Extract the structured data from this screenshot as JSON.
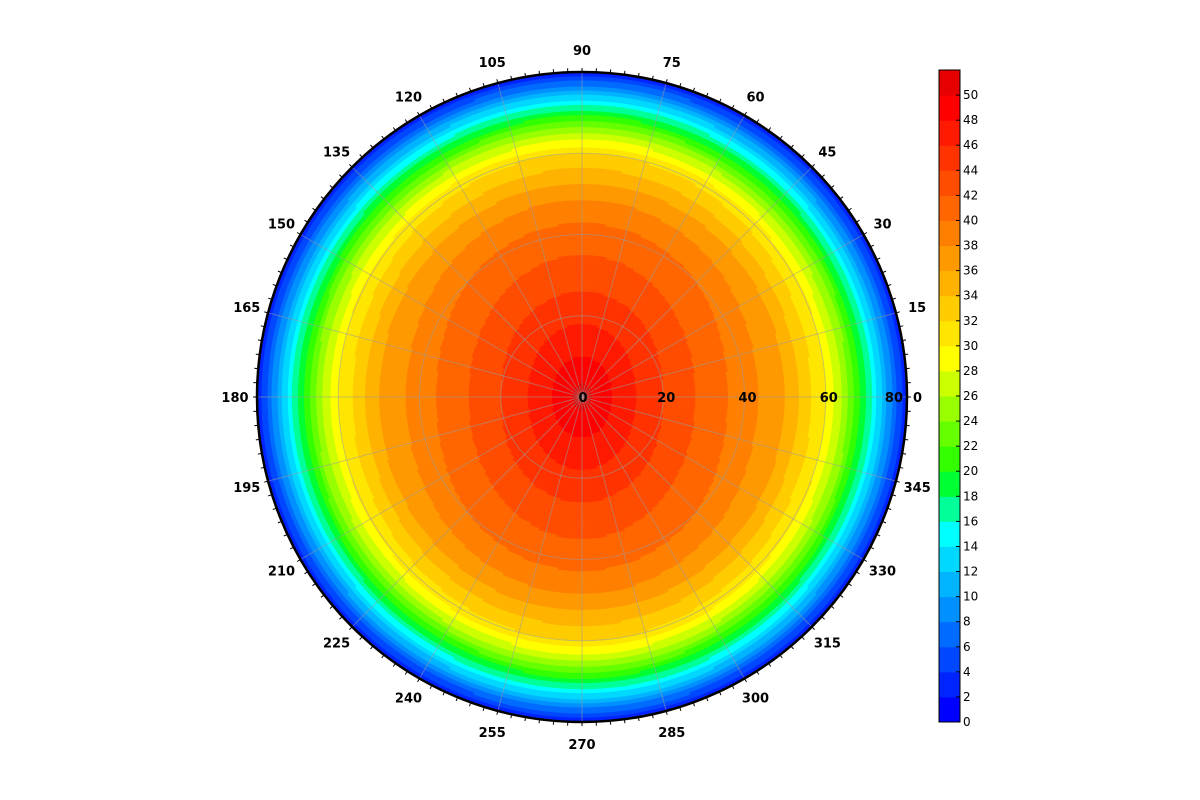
{
  "chart_data": {
    "type": "heatmap",
    "subtype": "polar-contour",
    "title": "",
    "angular_axis": {
      "unit": "degrees",
      "direction": "counterclockwise",
      "zero_at": "right",
      "step": 15,
      "tick_labels": [
        "0",
        "15",
        "30",
        "45",
        "60",
        "75",
        "90",
        "105",
        "120",
        "135",
        "150",
        "165",
        "180",
        "195",
        "210",
        "225",
        "240",
        "255",
        "270",
        "285",
        "300",
        "315",
        "330",
        "345"
      ]
    },
    "radial_axis": {
      "range": [
        0,
        80
      ],
      "tick_labels": [
        "0",
        "20",
        "40",
        "60",
        "80"
      ],
      "tick_values": [
        0,
        20,
        40,
        60,
        80
      ]
    },
    "grid": true,
    "colorbar": {
      "placement": "right",
      "range": [
        0,
        52
      ],
      "step": 2,
      "tick_labels": [
        "0",
        "2",
        "4",
        "6",
        "8",
        "10",
        "12",
        "14",
        "16",
        "18",
        "20",
        "22",
        "24",
        "26",
        "28",
        "30",
        "32",
        "34",
        "36",
        "38",
        "40",
        "42",
        "44",
        "46",
        "48",
        "50"
      ],
      "colors": [
        "#0000ff",
        "#0024ff",
        "#0048ff",
        "#006cff",
        "#0090ff",
        "#00b4ff",
        "#00d8ff",
        "#00ffff",
        "#00ff99",
        "#00ff33",
        "#33ff00",
        "#66ff00",
        "#99ff00",
        "#ccff00",
        "#ffff00",
        "#ffe600",
        "#ffcc00",
        "#ffb300",
        "#ff9900",
        "#ff8000",
        "#ff6600",
        "#ff4d00",
        "#ff3300",
        "#ff1a00",
        "#ff0000",
        "#e60000"
      ]
    },
    "field": {
      "description_values": "value as function of radius and angle; maximum near center",
      "center_value": 51,
      "profile_radius": [
        0,
        10,
        20,
        30,
        40,
        50,
        60,
        65,
        70,
        75,
        80
      ],
      "profile_value_x_direction": [
        51,
        47,
        44,
        41.5,
        39,
        36,
        30,
        25,
        18,
        10,
        2
      ],
      "profile_value_y_direction": [
        51,
        48,
        45.5,
        43,
        41,
        37.5,
        32,
        26,
        19,
        11,
        2
      ]
    }
  }
}
